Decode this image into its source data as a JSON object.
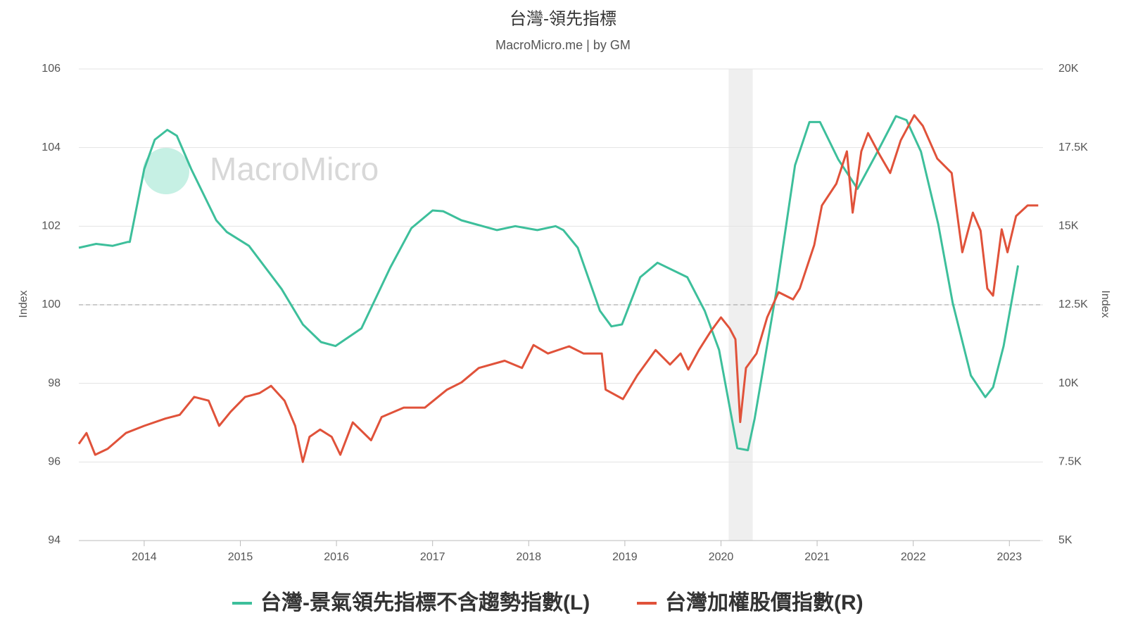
{
  "chart_data": {
    "type": "line",
    "title": "台灣-領先指標",
    "subtitle": "MacroMicro.me | by GM",
    "watermark": "MacroMicro",
    "y_label": "Index",
    "y2_label": "Index",
    "xlim": [
      2013.32,
      2023.32
    ],
    "xticks": [
      2014,
      2015,
      2016,
      2017,
      2018,
      2019,
      2020,
      2021,
      2022,
      2023
    ],
    "ylim": [
      94,
      106
    ],
    "yticks": [
      94,
      96,
      98,
      100,
      102,
      104,
      106
    ],
    "y2lim": [
      5000,
      20000
    ],
    "y2ticks": [
      {
        "value": 5000,
        "label": "5K"
      },
      {
        "value": 7500,
        "label": "7.5K"
      },
      {
        "value": 10000,
        "label": "10K"
      },
      {
        "value": 12500,
        "label": "12.5K"
      },
      {
        "value": 15000,
        "label": "15K"
      },
      {
        "value": 17500,
        "label": "17.5K"
      },
      {
        "value": 20000,
        "label": "20K"
      }
    ],
    "reference_line": 100,
    "shaded_periods": [
      [
        2020.08,
        2020.33
      ]
    ],
    "grid": true,
    "legend": "bottom",
    "series": [
      {
        "name": "台灣-景氣領先指標不含趨勢指數(L)",
        "color": "#3dbf9b",
        "x": [
          2013.32,
          2013.5,
          2013.67,
          2013.83,
          2013.85,
          2014.0,
          2014.11,
          2014.24,
          2014.34,
          2014.49,
          2014.75,
          2014.86,
          2015.09,
          2015.43,
          2015.65,
          2015.84,
          2015.99,
          2016.26,
          2016.56,
          2016.78,
          2017.0,
          2017.11,
          2017.3,
          2017.67,
          2017.86,
          2018.09,
          2018.28,
          2018.36,
          2018.51,
          2018.74,
          2018.86,
          2018.97,
          2019.16,
          2019.34,
          2019.65,
          2019.83,
          2019.98,
          2020.17,
          2020.28,
          2020.35,
          2020.58,
          2020.77,
          2020.92,
          2021.03,
          2021.22,
          2021.42,
          2021.63,
          2021.82,
          2021.93,
          2022.08,
          2022.26,
          2022.41,
          2022.6,
          2022.75,
          2022.83,
          2022.94,
          2023.09
        ],
        "values": [
          101.45,
          101.55,
          101.5,
          101.6,
          101.6,
          103.45,
          104.2,
          104.45,
          104.3,
          103.45,
          102.15,
          101.85,
          101.5,
          100.4,
          99.5,
          99.05,
          98.95,
          99.4,
          100.95,
          101.95,
          102.4,
          102.38,
          102.15,
          101.9,
          102.0,
          101.9,
          102.0,
          101.9,
          101.45,
          99.85,
          99.45,
          99.5,
          100.7,
          101.07,
          100.7,
          99.85,
          98.85,
          96.35,
          96.3,
          97.1,
          100.4,
          103.55,
          104.65,
          104.65,
          103.7,
          102.95,
          103.9,
          104.8,
          104.7,
          103.9,
          102.05,
          100.05,
          98.2,
          97.65,
          97.9,
          98.95,
          101.0
        ]
      },
      {
        "name": "台灣加權股價指數(R)",
        "color": "#e0523a",
        "axis": "y2",
        "x": [
          2013.32,
          2013.4,
          2013.49,
          2013.62,
          2013.81,
          2014.0,
          2014.22,
          2014.37,
          2014.52,
          2014.67,
          2014.78,
          2014.9,
          2015.05,
          2015.2,
          2015.32,
          2015.46,
          2015.57,
          2015.65,
          2015.72,
          2015.83,
          2015.95,
          2016.04,
          2016.17,
          2016.36,
          2016.47,
          2016.7,
          2016.92,
          2017.15,
          2017.3,
          2017.48,
          2017.75,
          2017.93,
          2018.05,
          2018.2,
          2018.42,
          2018.57,
          2018.76,
          2018.8,
          2018.98,
          2019.13,
          2019.32,
          2019.47,
          2019.58,
          2019.66,
          2019.77,
          2019.89,
          2020.0,
          2020.09,
          2020.15,
          2020.2,
          2020.26,
          2020.37,
          2020.48,
          2020.6,
          2020.75,
          2020.82,
          2020.97,
          2021.05,
          2021.2,
          2021.31,
          2021.37,
          2021.46,
          2021.53,
          2021.65,
          2021.76,
          2021.87,
          2022.01,
          2022.1,
          2022.25,
          2022.4,
          2022.51,
          2022.62,
          2022.7,
          2022.77,
          2022.83,
          2022.92,
          2022.98,
          2023.07,
          2023.19,
          2023.3
        ],
        "values": [
          8077,
          8420,
          7730,
          7920,
          8420,
          8650,
          8880,
          9000,
          9570,
          9450,
          8650,
          9100,
          9570,
          9690,
          9920,
          9450,
          8650,
          7500,
          8300,
          8530,
          8300,
          7730,
          8760,
          8190,
          8930,
          9230,
          9230,
          9800,
          10030,
          10490,
          10720,
          10490,
          11220,
          10950,
          11180,
          10950,
          10950,
          9800,
          9500,
          10260,
          11060,
          10600,
          10950,
          10440,
          11060,
          11640,
          12100,
          11750,
          11400,
          8770,
          10490,
          10950,
          12100,
          12900,
          12670,
          13020,
          14400,
          15660,
          16350,
          17380,
          15430,
          17380,
          17960,
          17270,
          16690,
          17730,
          18530,
          18190,
          17150,
          16690,
          14170,
          15430,
          14860,
          13020,
          12790,
          14900,
          14170,
          15320,
          15660,
          15660
        ]
      }
    ]
  }
}
